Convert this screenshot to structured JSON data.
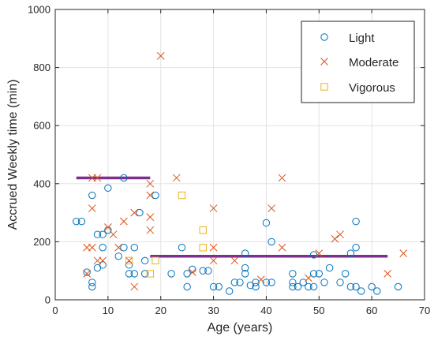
{
  "chart_data": {
    "type": "scatter",
    "xlabel": "Age (years)",
    "ylabel": "Accrued Weekly time (min)",
    "xlim": [
      0,
      70
    ],
    "ylim": [
      0,
      1000
    ],
    "xticks": [
      0,
      10,
      20,
      30,
      40,
      50,
      60,
      70
    ],
    "yticks": [
      0,
      200,
      400,
      600,
      800,
      1000
    ],
    "grid": true,
    "legend_position": "top-right",
    "colors": {
      "Light": "#0072BD",
      "Moderate": "#D95319",
      "Vigorous": "#EDB120",
      "trend": "#7E2F8E"
    },
    "series": [
      {
        "name": "Light",
        "marker": "circle",
        "points": [
          [
            4,
            270
          ],
          [
            5,
            270
          ],
          [
            6,
            95
          ],
          [
            7,
            45
          ],
          [
            7,
            60
          ],
          [
            7,
            360
          ],
          [
            8,
            110
          ],
          [
            8,
            225
          ],
          [
            9,
            120
          ],
          [
            9,
            180
          ],
          [
            9,
            225
          ],
          [
            10,
            385
          ],
          [
            10,
            240
          ],
          [
            12,
            150
          ],
          [
            13,
            420
          ],
          [
            13,
            180
          ],
          [
            14,
            90
          ],
          [
            14,
            120
          ],
          [
            15,
            90
          ],
          [
            15,
            180
          ],
          [
            16,
            300
          ],
          [
            17,
            90
          ],
          [
            17,
            135
          ],
          [
            19,
            360
          ],
          [
            22,
            90
          ],
          [
            24,
            180
          ],
          [
            25,
            45
          ],
          [
            25,
            90
          ],
          [
            26,
            105
          ],
          [
            28,
            100
          ],
          [
            29,
            100
          ],
          [
            30,
            45
          ],
          [
            31,
            45
          ],
          [
            33,
            30
          ],
          [
            34,
            60
          ],
          [
            35,
            60
          ],
          [
            36,
            90
          ],
          [
            36,
            110
          ],
          [
            36,
            160
          ],
          [
            37,
            50
          ],
          [
            38,
            60
          ],
          [
            38,
            45
          ],
          [
            40,
            265
          ],
          [
            40,
            60
          ],
          [
            41,
            200
          ],
          [
            41,
            60
          ],
          [
            45,
            90
          ],
          [
            45,
            60
          ],
          [
            45,
            45
          ],
          [
            46,
            45
          ],
          [
            47,
            60
          ],
          [
            48,
            45
          ],
          [
            49,
            90
          ],
          [
            49,
            45
          ],
          [
            49,
            155
          ],
          [
            50,
            90
          ],
          [
            51,
            60
          ],
          [
            52,
            110
          ],
          [
            54,
            60
          ],
          [
            55,
            90
          ],
          [
            56,
            45
          ],
          [
            56,
            160
          ],
          [
            57,
            45
          ],
          [
            57,
            270
          ],
          [
            57,
            180
          ],
          [
            58,
            30
          ],
          [
            60,
            45
          ],
          [
            61,
            30
          ],
          [
            65,
            45
          ]
        ]
      },
      {
        "name": "Moderate",
        "marker": "x",
        "points": [
          [
            6,
            180
          ],
          [
            6,
            90
          ],
          [
            7,
            315
          ],
          [
            7,
            180
          ],
          [
            7,
            420
          ],
          [
            8,
            420
          ],
          [
            8,
            135
          ],
          [
            9,
            135
          ],
          [
            10,
            250
          ],
          [
            11,
            225
          ],
          [
            12,
            180
          ],
          [
            13,
            270
          ],
          [
            14,
            135
          ],
          [
            15,
            300
          ],
          [
            15,
            45
          ],
          [
            18,
            240
          ],
          [
            18,
            285
          ],
          [
            18,
            360
          ],
          [
            18,
            400
          ],
          [
            20,
            840
          ],
          [
            23,
            420
          ],
          [
            26,
            95
          ],
          [
            30,
            315
          ],
          [
            30,
            180
          ],
          [
            30,
            135
          ],
          [
            34,
            135
          ],
          [
            39,
            70
          ],
          [
            41,
            315
          ],
          [
            43,
            420
          ],
          [
            43,
            180
          ],
          [
            48,
            75
          ],
          [
            50,
            160
          ],
          [
            53,
            210
          ],
          [
            54,
            225
          ],
          [
            63,
            90
          ],
          [
            66,
            160
          ]
        ]
      },
      {
        "name": "Vigorous",
        "marker": "square",
        "points": [
          [
            14,
            135
          ],
          [
            18,
            90
          ],
          [
            19,
            135
          ],
          [
            24,
            360
          ],
          [
            28,
            240
          ],
          [
            28,
            180
          ]
        ]
      }
    ],
    "trend_lines": [
      {
        "x": [
          4,
          18
        ],
        "y": [
          420,
          420
        ]
      },
      {
        "x": [
          18,
          63
        ],
        "y": [
          150,
          150
        ]
      }
    ]
  }
}
